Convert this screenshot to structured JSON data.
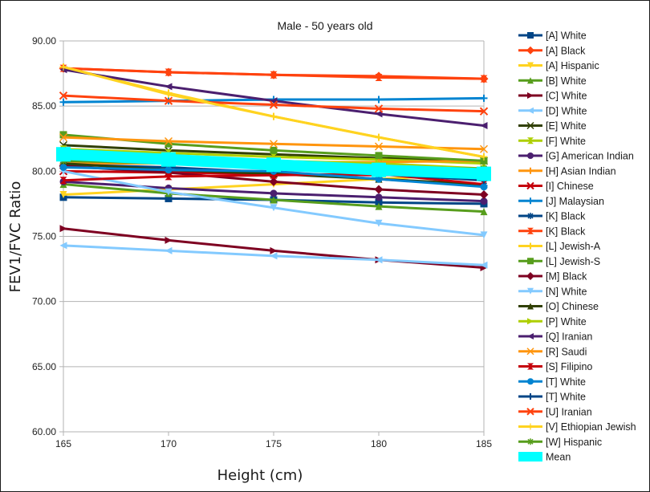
{
  "chart_data": {
    "type": "line",
    "title": "Male - 50 years old",
    "xlabel": "Height (cm)",
    "ylabel": "FEV1/FVC Ratio",
    "x": [
      165,
      170,
      175,
      180,
      185
    ],
    "x_tick_labels": [
      "165",
      "170",
      "175",
      "180",
      "185"
    ],
    "ylim": [
      60,
      90
    ],
    "y_ticks": [
      60,
      65,
      70,
      75,
      80,
      85,
      90
    ],
    "y_tick_labels": [
      "60.00",
      "65.00",
      "70.00",
      "75.00",
      "80.00",
      "85.00",
      "90.00"
    ],
    "grid": "horizontal",
    "legend_position": "right",
    "series": [
      {
        "name": "[A] White",
        "color": "#004586",
        "marker": "square",
        "values": [
          78.0,
          77.9,
          77.8,
          77.6,
          77.5
        ]
      },
      {
        "name": "[A] Black",
        "color": "#ff420e",
        "marker": "diamond",
        "values": [
          87.9,
          87.6,
          87.4,
          87.3,
          87.1
        ]
      },
      {
        "name": "[A] Hispanic",
        "color": "#ffd320",
        "marker": "triangle-down",
        "values": [
          78.2,
          78.6,
          79.0,
          79.4,
          79.8
        ]
      },
      {
        "name": "[B] White",
        "color": "#579d1c",
        "marker": "triangle-up",
        "values": [
          79.0,
          78.3,
          77.8,
          77.3,
          76.9
        ]
      },
      {
        "name": "[C] White",
        "color": "#7e0021",
        "marker": "triangle-right",
        "values": [
          75.6,
          74.7,
          73.9,
          73.2,
          72.6
        ]
      },
      {
        "name": "[D] White",
        "color": "#83caff",
        "marker": "triangle-left",
        "values": [
          74.3,
          73.9,
          73.5,
          73.2,
          72.8
        ]
      },
      {
        "name": "[E] White",
        "color": "#314004",
        "marker": "bowtie",
        "values": [
          82.0,
          81.6,
          81.3,
          81.0,
          80.8
        ]
      },
      {
        "name": "[F] White",
        "color": "#aecf00",
        "marker": "hourglass",
        "values": [
          81.7,
          81.4,
          81.1,
          80.9,
          80.6
        ]
      },
      {
        "name": "[G] American Indian",
        "color": "#4b1f6f",
        "marker": "circle",
        "values": [
          79.2,
          78.7,
          78.3,
          78.0,
          77.7
        ]
      },
      {
        "name": "[H] Asian Indian",
        "color": "#ff950e",
        "marker": "plus",
        "values": [
          80.6,
          80.6,
          80.7,
          80.7,
          80.8
        ]
      },
      {
        "name": "[I] Chinese",
        "color": "#c5000b",
        "marker": "x",
        "values": [
          80.0,
          79.9,
          79.8,
          79.7,
          80.0
        ]
      },
      {
        "name": "[J] Malaysian",
        "color": "#0084d1",
        "marker": "plus",
        "values": [
          85.3,
          85.4,
          85.5,
          85.5,
          85.6
        ]
      },
      {
        "name": "[K] Black",
        "color": "#004586",
        "marker": "star",
        "values": [
          80.5,
          80.3,
          79.9,
          79.4,
          78.9
        ]
      },
      {
        "name": "[K] Black",
        "color": "#ff420e",
        "marker": "hourglass",
        "values": [
          87.9,
          87.6,
          87.4,
          87.2,
          87.1
        ]
      },
      {
        "name": "[L] Jewish-A",
        "color": "#ffd320",
        "marker": "plus",
        "values": [
          88.0,
          86.0,
          84.2,
          82.6,
          81.1
        ]
      },
      {
        "name": "[L] Jewish-S",
        "color": "#579d1c",
        "marker": "square",
        "values": [
          82.8,
          82.1,
          81.6,
          81.2,
          80.8
        ]
      },
      {
        "name": "[M] Black",
        "color": "#7e0021",
        "marker": "diamond",
        "values": [
          80.4,
          79.9,
          79.2,
          78.6,
          78.2
        ]
      },
      {
        "name": "[N] White",
        "color": "#83caff",
        "marker": "triangle-down",
        "values": [
          80.0,
          78.4,
          77.2,
          76.0,
          75.1
        ]
      },
      {
        "name": "[O] Chinese",
        "color": "#314004",
        "marker": "triangle-up",
        "values": [
          80.6,
          80.1,
          79.8,
          79.4,
          79.0
        ]
      },
      {
        "name": "[P] White",
        "color": "#aecf00",
        "marker": "triangle-right",
        "values": [
          81.5,
          81.2,
          80.8,
          80.6,
          80.2
        ]
      },
      {
        "name": "[Q] Iranian",
        "color": "#4b1f6f",
        "marker": "triangle-left",
        "values": [
          87.8,
          86.5,
          85.4,
          84.4,
          83.5
        ]
      },
      {
        "name": "[R] Saudi",
        "color": "#ff950e",
        "marker": "bowtie",
        "values": [
          82.6,
          82.3,
          82.1,
          81.9,
          81.7
        ]
      },
      {
        "name": "[S] Filipino",
        "color": "#c5000b",
        "marker": "hourglass",
        "values": [
          79.3,
          79.6,
          79.7,
          79.8,
          79.0
        ]
      },
      {
        "name": "[T] White",
        "color": "#0084d1",
        "marker": "circle",
        "values": [
          80.3,
          80.1,
          80.0,
          79.4,
          78.8
        ]
      },
      {
        "name": "[T] White",
        "color": "#004586",
        "marker": "plus",
        "values": [
          81.0,
          80.6,
          80.2,
          79.8,
          79.3
        ]
      },
      {
        "name": "[U] Iranian",
        "color": "#ff420e",
        "marker": "x",
        "values": [
          85.8,
          85.4,
          85.1,
          84.8,
          84.6
        ]
      },
      {
        "name": "[V] Ethiopian Jewish",
        "color": "#ffd320",
        "marker": "plus-thin",
        "values": [
          88.0,
          85.9,
          84.2,
          82.6,
          81.1
        ]
      },
      {
        "name": "[W] Hispanic",
        "color": "#579d1c",
        "marker": "star",
        "values": [
          80.8,
          80.6,
          80.5,
          80.3,
          80.2
        ]
      },
      {
        "name": "Mean",
        "color": "#00ffff",
        "marker": "square-big",
        "values": [
          81.3,
          80.9,
          80.5,
          80.1,
          79.8
        ],
        "thick": true
      }
    ]
  }
}
